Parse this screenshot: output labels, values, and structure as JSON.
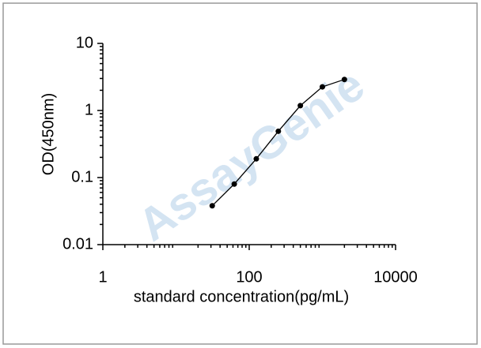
{
  "chart_data": {
    "type": "line",
    "x_label": "standard concentration(pg/mL)",
    "y_label": "OD(450nm)",
    "watermark": "AssayGenie",
    "x": [
      31.25,
      62.5,
      125,
      250,
      500,
      1000,
      2000
    ],
    "series": [
      {
        "color": "#000000",
        "values": [
          0.038,
          0.08,
          0.19,
          0.49,
          1.18,
          2.25,
          2.9
        ]
      }
    ],
    "xlim": [
      1,
      10000
    ],
    "xticks": [
      1,
      100,
      10000
    ],
    "ylim": [
      0.01,
      10
    ],
    "yticks": [
      10,
      1,
      0.1,
      0.01
    ],
    "xscale": "log",
    "yscale": "log",
    "grid": false
  }
}
